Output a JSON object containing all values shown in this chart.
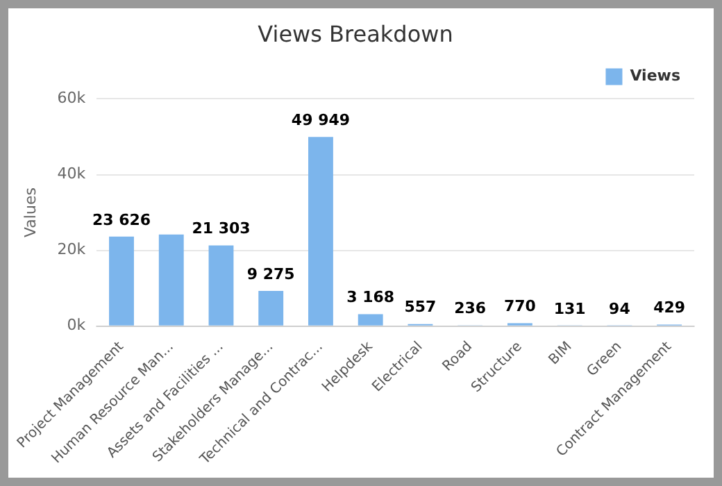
{
  "chart_data": {
    "type": "bar",
    "title": "Views Breakdown",
    "ylabel": "Values",
    "categories": [
      "Project Management",
      "Human Resource Man...",
      "Assets and Facilities ...",
      "Stakeholders Manage...",
      "Technical and Contrac...",
      "Helpdesk",
      "Electrical",
      "Road",
      "Structure",
      "BIM",
      "Green",
      "Contract Management"
    ],
    "series": [
      {
        "name": "Views",
        "color": "#7cb5ec",
        "values": [
          23626,
          24200,
          21303,
          9275,
          49949,
          3168,
          557,
          236,
          770,
          131,
          94,
          429
        ],
        "value_labels": [
          "23 626",
          null,
          "21 303",
          "9 275",
          "49 949",
          "3 168",
          "557",
          "236",
          "770",
          "131",
          "94",
          "429"
        ]
      }
    ],
    "ylim": [
      0,
      60000
    ],
    "yticks": [
      {
        "value": 0,
        "label": "0k"
      },
      {
        "value": 20000,
        "label": "20k"
      },
      {
        "value": 40000,
        "label": "40k"
      },
      {
        "value": 60000,
        "label": "60k"
      }
    ],
    "grid": "y",
    "legend": "top right"
  }
}
